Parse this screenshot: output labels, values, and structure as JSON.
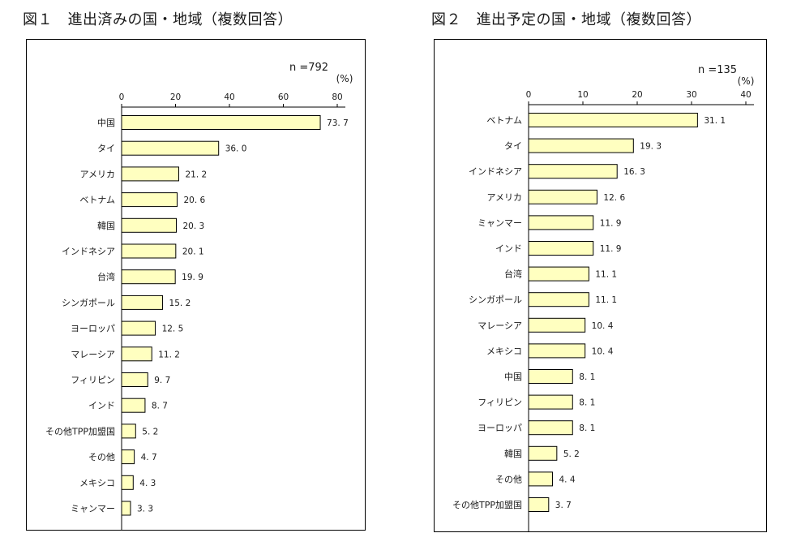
{
  "chart_data": [
    {
      "type": "bar",
      "orientation": "horizontal",
      "title": "図１　進出済みの国・地域（複数回答）",
      "n_label": "n =792",
      "unit_label": "(%)",
      "xlim": [
        0,
        80
      ],
      "x_ticks": [
        0,
        20,
        40,
        60,
        80
      ],
      "categories": [
        "中国",
        "タイ",
        "アメリカ",
        "ベトナム",
        "韓国",
        "インドネシア",
        "台湾",
        "シンガポール",
        "ヨーロッパ",
        "マレーシア",
        "フィリピン",
        "インド",
        "その他TPP加盟国",
        "その他",
        "メキシコ",
        "ミャンマー"
      ],
      "values": [
        73.7,
        36.0,
        21.2,
        20.6,
        20.3,
        20.1,
        19.9,
        15.2,
        12.5,
        11.2,
        9.7,
        8.7,
        5.2,
        4.7,
        4.3,
        3.3
      ],
      "value_labels": [
        "73. 7",
        "36. 0",
        "21. 2",
        "20. 6",
        "20. 3",
        "20. 1",
        "19. 9",
        "15. 2",
        "12. 5",
        "11. 2",
        "9. 7",
        "8. 7",
        "5. 2",
        "4. 7",
        "4. 3",
        "3. 3"
      ],
      "grid": false
    },
    {
      "type": "bar",
      "orientation": "horizontal",
      "title": "図２　進出予定の国・地域（複数回答）",
      "n_label": "n =135",
      "unit_label": "(%)",
      "xlim": [
        0,
        40
      ],
      "x_ticks": [
        0,
        10,
        20,
        30,
        40
      ],
      "categories": [
        "ベトナム",
        "タイ",
        "インドネシア",
        "アメリカ",
        "ミャンマー",
        "インド",
        "台湾",
        "シンガポール",
        "マレーシア",
        "メキシコ",
        "中国",
        "フィリピン",
        "ヨーロッパ",
        "韓国",
        "その他",
        "その他TPP加盟国"
      ],
      "values": [
        31.1,
        19.3,
        16.3,
        12.6,
        11.9,
        11.9,
        11.1,
        11.1,
        10.4,
        10.4,
        8.1,
        8.1,
        8.1,
        5.2,
        4.4,
        3.7
      ],
      "value_labels": [
        "31. 1",
        "19. 3",
        "16. 3",
        "12. 6",
        "11. 9",
        "11. 9",
        "11. 1",
        "11. 1",
        "10. 4",
        "10. 4",
        "8. 1",
        "8. 1",
        "8. 1",
        "5. 2",
        "4. 4",
        "3. 7"
      ],
      "grid": false
    }
  ],
  "colors": {
    "bar_fill": "#ffffc0",
    "bar_stroke": "#000000",
    "axis": "#000000"
  }
}
